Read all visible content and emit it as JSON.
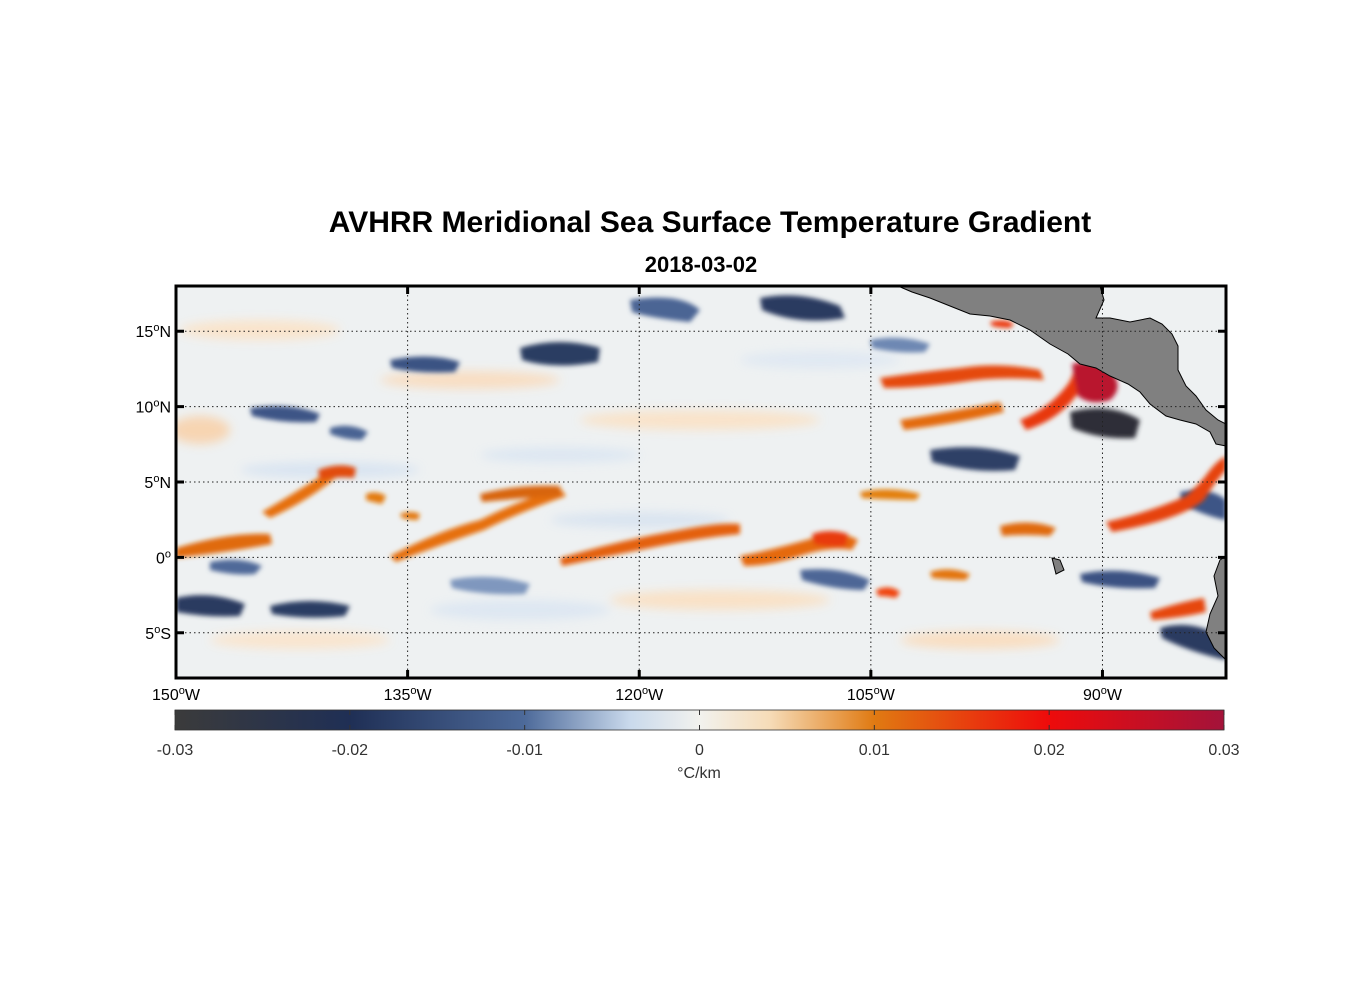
{
  "title": "AVHRR Meridional Sea Surface Temperature Gradient",
  "subtitle": "2018-03-02",
  "map": {
    "lon_range": [
      -150,
      -82
    ],
    "lat_range": [
      -8,
      18
    ],
    "lat_labels": [
      {
        "value": 15,
        "deg": "15",
        "hemi": "N"
      },
      {
        "value": 10,
        "deg": "10",
        "hemi": "N"
      },
      {
        "value": 5,
        "deg": "5",
        "hemi": "N"
      },
      {
        "value": 0,
        "deg": "0",
        "hemi": ""
      },
      {
        "value": -5,
        "deg": "5",
        "hemi": "S"
      }
    ],
    "lon_labels": [
      {
        "value": -150,
        "deg": "150",
        "hemi": "W"
      },
      {
        "value": -135,
        "deg": "135",
        "hemi": "W"
      },
      {
        "value": -120,
        "deg": "120",
        "hemi": "W"
      },
      {
        "value": -105,
        "deg": "105",
        "hemi": "W"
      },
      {
        "value": -90,
        "deg": "90",
        "hemi": "W"
      }
    ],
    "land_color": "#808080",
    "grid": "dotted"
  },
  "colorbar": {
    "min": -0.03,
    "max": 0.03,
    "ticks": [
      "-0.03",
      "-0.02",
      "-0.01",
      "0",
      "0.01",
      "0.02",
      "0.03"
    ],
    "tick_values": [
      -0.03,
      -0.02,
      -0.01,
      0,
      0.01,
      0.02,
      0.03
    ],
    "units": "°C/km",
    "stops": [
      {
        "v": -0.03,
        "color": "#3b3b3b"
      },
      {
        "v": -0.02,
        "color": "#1f2f55"
      },
      {
        "v": -0.01,
        "color": "#4d6a9a"
      },
      {
        "v": -0.004,
        "color": "#c9d9ec"
      },
      {
        "v": 0,
        "color": "#f2f2ee"
      },
      {
        "v": 0.004,
        "color": "#f6dcb8"
      },
      {
        "v": 0.01,
        "color": "#e07a12"
      },
      {
        "v": 0.02,
        "color": "#ee0b0b"
      },
      {
        "v": 0.03,
        "color": "#a3133a"
      }
    ]
  }
}
